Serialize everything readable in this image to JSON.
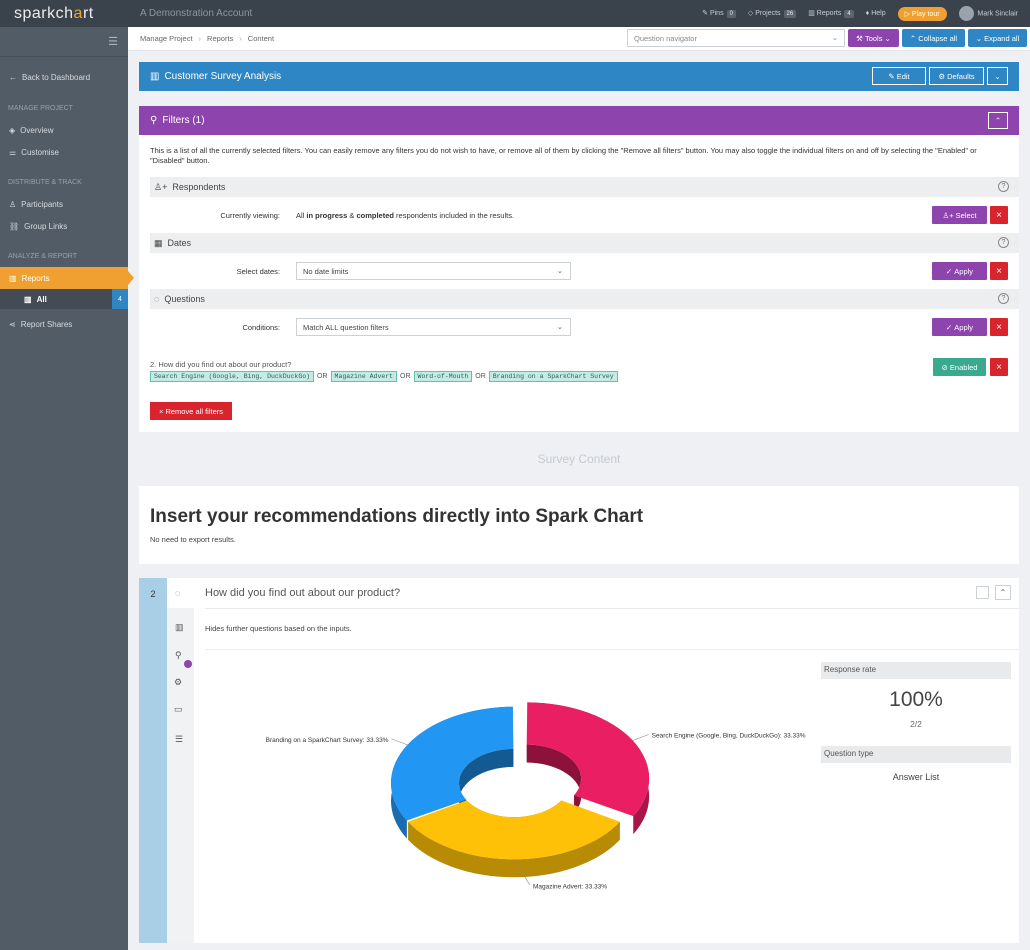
{
  "topbar": {
    "logo_a": "spark",
    "logo_b": "ch",
    "logo_c": "a",
    "logo_d": "rt",
    "account": "A Demonstration Account",
    "pins_label": "Pins",
    "pins_count": "0",
    "projects_label": "Projects",
    "projects_count": "26",
    "reports_label": "Reports",
    "reports_count": "4",
    "help_label": "Help",
    "play_tour": "Play tour",
    "user_name": "Mark Sinclair"
  },
  "sidebar": {
    "back": "Back to Dashboard",
    "manage_section": "MANAGE PROJECT",
    "overview": "Overview",
    "customise": "Customise",
    "distribute_section": "DISTRIBUTE & TRACK",
    "participants": "Participants",
    "group_links": "Group Links",
    "analyze_section": "ANALYZE & REPORT",
    "reports": "Reports",
    "all": "All",
    "all_count": "4",
    "report_shares": "Report Shares"
  },
  "breadcrumb": {
    "item1": "Manage Project",
    "item2": "Reports",
    "item3": "Content"
  },
  "toolbar": {
    "question_navigator": "Question navigator",
    "tools": "Tools",
    "collapse_all": "Collapse all",
    "expand_all": "Expand all"
  },
  "report_header": {
    "title": "Customer Survey Analysis",
    "edit": "Edit",
    "defaults": "Defaults"
  },
  "filters": {
    "title": "Filters (1)",
    "description": "This is a list of all the currently selected filters. You can easily remove any filters you do not wish to have, or remove all of them by clicking the \"Remove all filters\" button. You may also toggle the individual filters on and off by selecting the \"Enabled\" or \"Disabled\" button.",
    "respondents_title": "Respondents",
    "currently_viewing_label": "Currently viewing:",
    "viewing_a": "All ",
    "viewing_b": "in progress",
    "viewing_c": " & ",
    "viewing_d": "completed",
    "viewing_e": " respondents included in the results.",
    "select_btn": "Select",
    "dates_title": "Dates",
    "select_dates_label": "Select dates:",
    "date_value": "No date limits",
    "apply_btn": "Apply",
    "questions_title": "Questions",
    "conditions_label": "Conditions:",
    "conditions_value": "Match ALL question filters",
    "question_text": "2. How did you find out about our product?",
    "tags": [
      "Search Engine (Google, Bing, DuckDuckGo)",
      "Magazine Advert",
      "Word-of-Mouth",
      "Branding on a SparkChart Survey"
    ],
    "or_word": "OR",
    "enabled_btn": "Enabled",
    "remove_all": "Remove all filters"
  },
  "survey_content_label": "Survey Content",
  "recommend": {
    "heading": "Insert your recommendations directly into Spark Chart",
    "sub": "No need to export results."
  },
  "question": {
    "number": "2",
    "title": "How did you find out about our product?",
    "note": "Hides further questions based on the inputs.",
    "response_rate_label": "Response rate",
    "response_rate_value": "100%",
    "response_count": "2/2",
    "question_type_label": "Question type",
    "question_type_value": "Answer List"
  },
  "chart_data": {
    "type": "pie",
    "style": "3d-donut",
    "categories": [
      "Search Engine (Google, Bing, DuckDuckGo)",
      "Magazine Advert",
      "Branding on a SparkChart Survey"
    ],
    "values": [
      33.33,
      33.33,
      33.33
    ],
    "labels": [
      "Search Engine (Google, Bing, DuckDuckGo): 33.33%",
      "Magazine Advert: 33.33%",
      "Branding on a SparkChart Survey: 33.33%"
    ],
    "colors": [
      "#e91e63",
      "#ffc107",
      "#2196f3"
    ],
    "exploded": "Search Engine (Google, Bing, DuckDuckGo)"
  }
}
